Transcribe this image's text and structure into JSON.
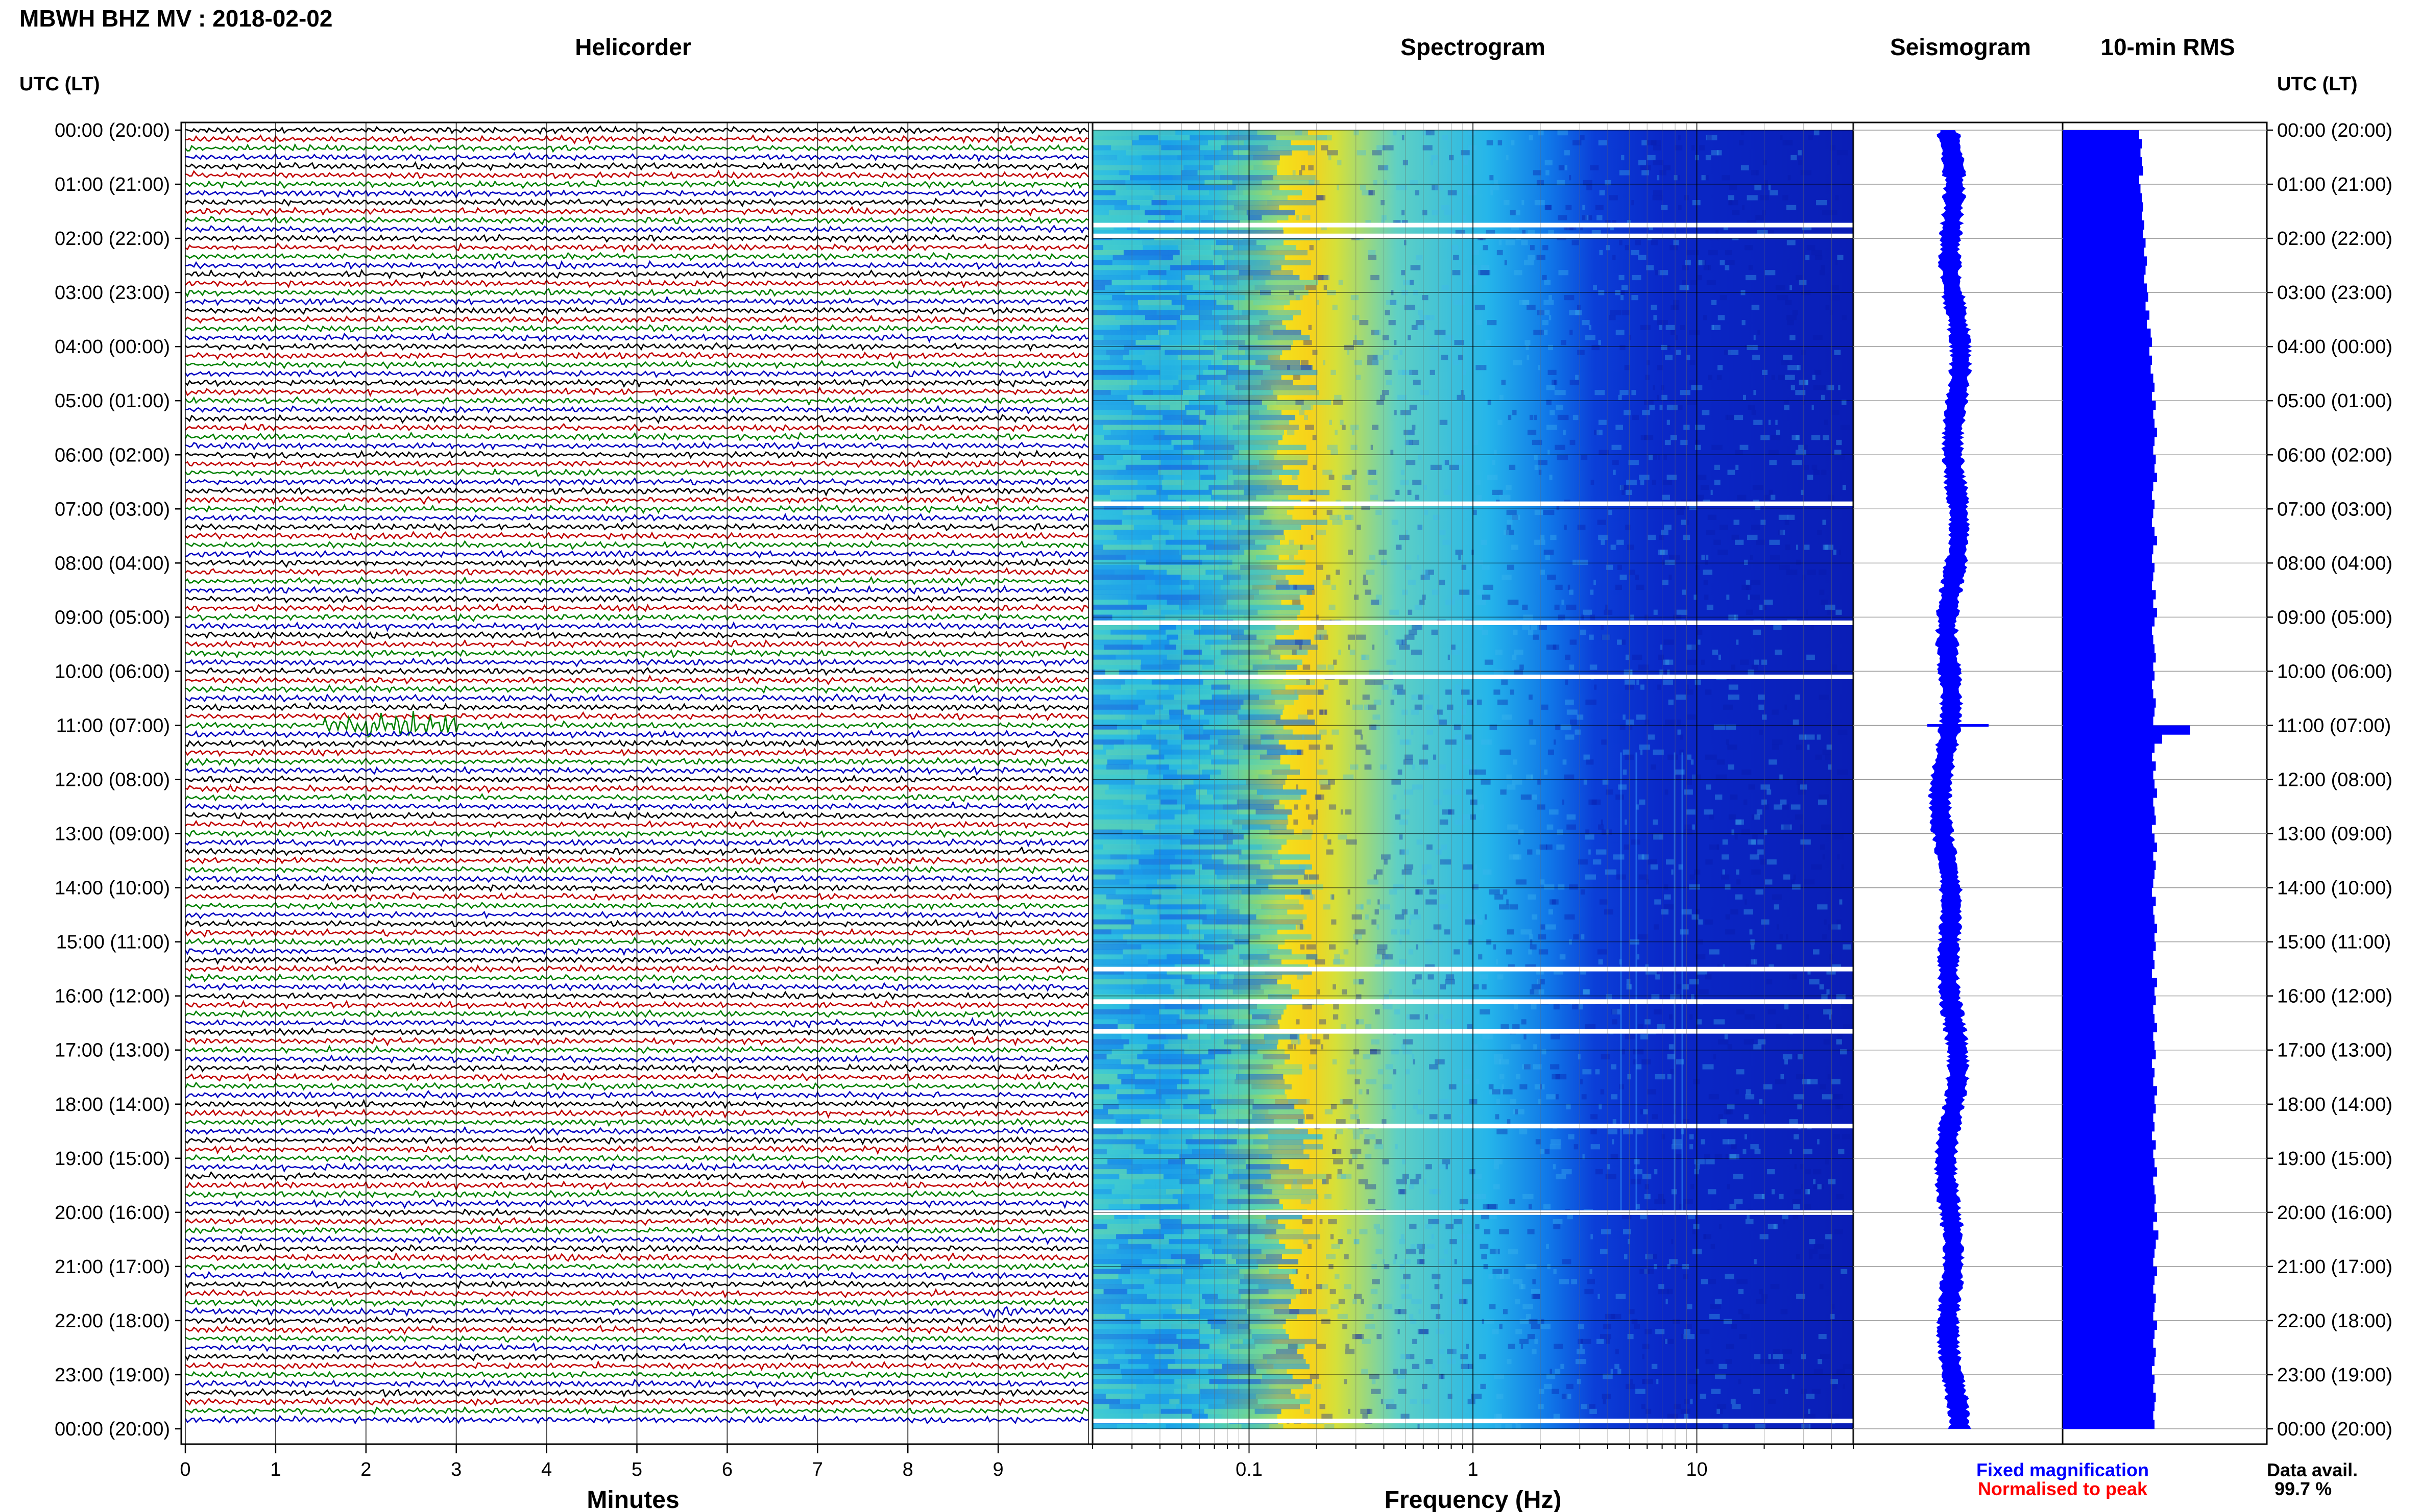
{
  "header": {
    "station_title": "MBWH BHZ MV : 2018-02-02",
    "left_axis_title": "UTC (LT)",
    "right_axis_title": "UTC (LT)"
  },
  "panels": {
    "helicorder": "Helicorder",
    "spectrogram": "Spectrogram",
    "seismogram": "Seismogram",
    "rms": "10-min RMS"
  },
  "time_labels": [
    "00:00 (20:00)",
    "01:00 (21:00)",
    "02:00 (22:00)",
    "03:00 (23:00)",
    "04:00 (00:00)",
    "05:00 (01:00)",
    "06:00 (02:00)",
    "07:00 (03:00)",
    "08:00 (04:00)",
    "09:00 (05:00)",
    "10:00 (06:00)",
    "11:00 (07:00)",
    "12:00 (08:00)",
    "13:00 (09:00)",
    "14:00 (10:00)",
    "15:00 (11:00)",
    "16:00 (12:00)",
    "17:00 (13:00)",
    "18:00 (14:00)",
    "19:00 (15:00)",
    "20:00 (16:00)",
    "21:00 (17:00)",
    "22:00 (18:00)",
    "23:00 (19:00)",
    "00:00 (20:00)"
  ],
  "footer": {
    "minutes_label": "Minutes",
    "frequency_label": "Frequency (Hz)",
    "legend_fixed": "Fixed magnification",
    "legend_normalised": "Normalised to peak",
    "data_avail_label": "Data avail.",
    "data_avail_value": "99.7 %"
  },
  "colors": {
    "helicorder_traces": [
      "#000000",
      "#c00000",
      "#008000",
      "#0000c0"
    ],
    "fixed_magnification": "#0000ff",
    "normalised_to_peak": "#ff0000",
    "rms_bar": "#0000ff",
    "seismogram": "#0000ff"
  },
  "chart_data": [
    {
      "type": "line",
      "name": "helicorder",
      "title": "Helicorder",
      "xlabel": "Minutes",
      "x_ticks": [
        "0",
        "1",
        "2",
        "3",
        "4",
        "5",
        "6",
        "7",
        "8",
        "9"
      ],
      "xlim": [
        0,
        10
      ],
      "y_ticks": [
        "00:00 (20:00)",
        "01:00 (21:00)",
        "02:00 (22:00)",
        "03:00 (23:00)",
        "04:00 (00:00)",
        "05:00 (01:00)",
        "06:00 (02:00)",
        "07:00 (03:00)",
        "08:00 (04:00)",
        "09:00 (05:00)",
        "10:00 (06:00)",
        "11:00 (07:00)",
        "12:00 (08:00)",
        "13:00 (09:00)",
        "14:00 (10:00)",
        "15:00 (11:00)",
        "16:00 (12:00)",
        "17:00 (13:00)",
        "18:00 (14:00)",
        "19:00 (15:00)",
        "20:00 (16:00)",
        "21:00 (17:00)",
        "22:00 (18:00)",
        "23:00 (19:00)",
        "00:00 (20:00)"
      ],
      "rows": 144,
      "events": [
        {
          "row": 66,
          "minute_start": 1.5,
          "minute_end": 3.0,
          "amplitude": 4
        },
        {
          "row": 131,
          "minute_start": 8.8,
          "minute_end": 9.2,
          "amplitude": 2
        },
        {
          "row": 125,
          "minute_start": 4.0,
          "minute_end": 4.3,
          "amplitude": 1.5
        }
      ]
    },
    {
      "type": "heatmap",
      "name": "spectrogram",
      "title": "Spectrogram",
      "xlabel": "Frequency (Hz)",
      "x_scale": "log",
      "xlim": [
        0.02,
        50
      ],
      "x_ticks": [
        "0.1",
        "1",
        "10"
      ],
      "gaps_hours": [
        1.75,
        1.95,
        6.9,
        9.1,
        10.1,
        15.5,
        16.1,
        16.65,
        18.4,
        20.0,
        23.85
      ]
    },
    {
      "type": "line",
      "name": "seismogram",
      "title": "Seismogram"
    },
    {
      "type": "bar",
      "name": "rms",
      "title": "10-min RMS",
      "orientation": "horizontal",
      "values": [
        0.6,
        0.62,
        0.61,
        0.62,
        0.63,
        0.6,
        0.61,
        0.62,
        0.63,
        0.62,
        0.64,
        0.63,
        0.65,
        0.64,
        0.66,
        0.65,
        0.64,
        0.66,
        0.67,
        0.65,
        0.68,
        0.66,
        0.69,
        0.7,
        0.68,
        0.7,
        0.69,
        0.71,
        0.72,
        0.7,
        0.73,
        0.71,
        0.72,
        0.74,
        0.72,
        0.71,
        0.73,
        0.72,
        0.74,
        0.71,
        0.7,
        0.72,
        0.71,
        0.7,
        0.72,
        0.74,
        0.71,
        0.7,
        0.72,
        0.71,
        0.7,
        0.73,
        0.71,
        0.74,
        0.72,
        0.7,
        0.71,
        0.72,
        0.73,
        0.71,
        0.72,
        0.7,
        0.71,
        0.73,
        0.72,
        0.71,
        1.0,
        0.78,
        0.72,
        0.7,
        0.73,
        0.71,
        0.72,
        0.74,
        0.71,
        0.72,
        0.73,
        0.7,
        0.72,
        0.74,
        0.71,
        0.73,
        0.72,
        0.71,
        0.7,
        0.73,
        0.71,
        0.72,
        0.74,
        0.72,
        0.73,
        0.71,
        0.72,
        0.7,
        0.74,
        0.72,
        0.73,
        0.71,
        0.72,
        0.74,
        0.71,
        0.72,
        0.73,
        0.7,
        0.72,
        0.71,
        0.74,
        0.72,
        0.73,
        0.71,
        0.72,
        0.7,
        0.73,
        0.71,
        0.72,
        0.74,
        0.71,
        0.72,
        0.73,
        0.72,
        0.74,
        0.71,
        0.75,
        0.73,
        0.72,
        0.71,
        0.74,
        0.72,
        0.71,
        0.73,
        0.72,
        0.71,
        0.74,
        0.72,
        0.71,
        0.73,
        0.72,
        0.7,
        0.72,
        0.71,
        0.73,
        0.72,
        0.71,
        0.72
      ]
    }
  ]
}
